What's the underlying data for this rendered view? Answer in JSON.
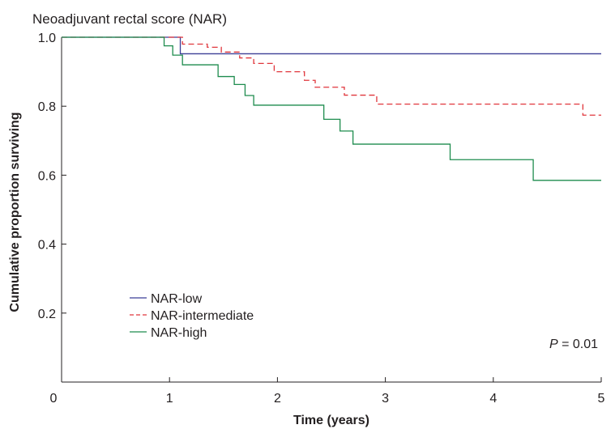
{
  "chart_data": {
    "type": "line",
    "title": "Neoadjuvant rectal score (NAR)",
    "xlabel": "Time (years)",
    "ylabel": "Cumulative proportion surviving",
    "xlim": [
      0,
      5
    ],
    "ylim": [
      0,
      1.0
    ],
    "x_ticks": [
      "0",
      "1",
      "2",
      "3",
      "4",
      "5"
    ],
    "y_ticks": [
      "0.2",
      "0.4",
      "0.6",
      "0.8",
      "1.0"
    ],
    "grid": false,
    "legend_position": "bottom-left",
    "annotation": {
      "italic": "P",
      "rest": " = 0.01"
    },
    "series": [
      {
        "name": "NAR-low",
        "color": "#3b3f96",
        "dash": "solid",
        "steps": [
          [
            0,
            1.0
          ],
          [
            1.1,
            0.952
          ],
          [
            5.0,
            0.952
          ]
        ]
      },
      {
        "name": "NAR-intermediate",
        "color": "#e0363c",
        "dash": "dashed",
        "steps": [
          [
            0,
            1.0
          ],
          [
            1.12,
            0.98
          ],
          [
            1.35,
            0.971
          ],
          [
            1.48,
            0.957
          ],
          [
            1.65,
            0.94
          ],
          [
            1.78,
            0.924
          ],
          [
            1.97,
            0.9
          ],
          [
            2.25,
            0.875
          ],
          [
            2.35,
            0.855
          ],
          [
            2.62,
            0.832
          ],
          [
            2.92,
            0.806
          ],
          [
            4.83,
            0.774
          ],
          [
            5.0,
            0.774
          ]
        ]
      },
      {
        "name": "NAR-high",
        "color": "#1e8c4e",
        "dash": "solid",
        "steps": [
          [
            0,
            1.0
          ],
          [
            0.95,
            0.975
          ],
          [
            1.03,
            0.948
          ],
          [
            1.12,
            0.92
          ],
          [
            1.45,
            0.886
          ],
          [
            1.6,
            0.863
          ],
          [
            1.7,
            0.831
          ],
          [
            1.78,
            0.803
          ],
          [
            2.43,
            0.762
          ],
          [
            2.58,
            0.728
          ],
          [
            2.7,
            0.69
          ],
          [
            3.6,
            0.645
          ],
          [
            4.37,
            0.585
          ],
          [
            5.0,
            0.585
          ]
        ]
      }
    ]
  }
}
